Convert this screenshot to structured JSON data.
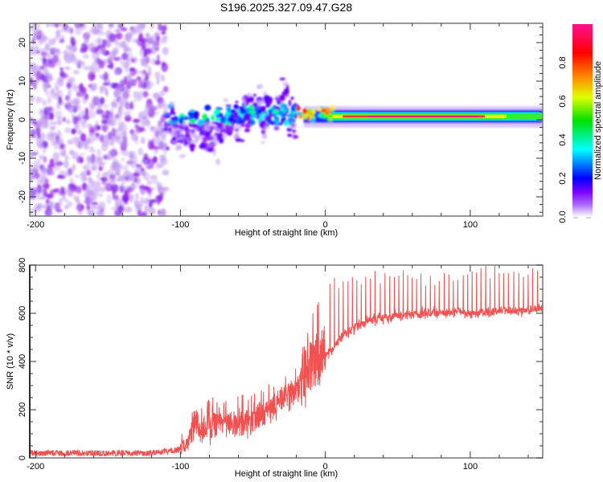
{
  "figure_title": "S196.2025.327.09.47.G28",
  "chart_data": [
    {
      "type": "heatmap",
      "panel": "top",
      "title": "S196.2025.327.09.47.G28",
      "xlabel": "Height of straight line (km)",
      "ylabel": "Frequency (Hz)",
      "xlim": [
        -204,
        150
      ],
      "ylim": [
        -25,
        25
      ],
      "xticks": [
        -200,
        -100,
        0,
        100
      ],
      "xtick_labels": [
        "-200",
        "-100",
        "0",
        "100"
      ],
      "yticks": [
        -20,
        -10,
        0,
        10,
        20
      ],
      "ytick_labels": [
        "-20",
        "-10",
        "0",
        "10",
        "20"
      ],
      "colorbar": {
        "label": "Normalized spectral amplitude",
        "range": [
          0.0,
          1.0
        ],
        "ticks": [
          0.0,
          0.2,
          0.4,
          0.6,
          0.8
        ],
        "tick_labels": [
          "0.0",
          "0.2",
          "0.4",
          "0.6",
          "0.8"
        ],
        "colormap": [
          "#ffffff",
          "#8000ff",
          "#0000ff",
          "#00ffff",
          "#00ff00",
          "#ffff00",
          "#ff8000",
          "#ff0000",
          "#ff0080"
        ]
      },
      "features": [
        {
          "name": "noise-region",
          "x_range": [
            -204,
            -110
          ],
          "freq_range": [
            -25,
            25
          ],
          "amplitude": 0.05
        },
        {
          "name": "turbulent-region",
          "x_range": [
            -110,
            -20
          ],
          "freq_center": 1.5,
          "freq_spread": 6,
          "amplitude": 0.35
        },
        {
          "name": "transition-region",
          "x_range": [
            -20,
            5
          ],
          "freq_center": 1.5,
          "freq_spread": 2,
          "amplitude": 0.75
        },
        {
          "name": "stable-tone",
          "x_range": [
            5,
            110
          ],
          "freq_center": 1.0,
          "freq_spread": 1,
          "amplitude": 0.95
        },
        {
          "name": "tapering-tone",
          "x_range": [
            110,
            150
          ],
          "freq_center": 0.5,
          "freq_spread": 1.5,
          "amplitude": 0.6
        }
      ],
      "grid": false
    },
    {
      "type": "line",
      "panel": "bottom",
      "xlabel": "Height of straight line (km)",
      "ylabel": "SNR (10 * v/v)",
      "xlim": [
        -204,
        150
      ],
      "ylim": [
        0,
        800
      ],
      "xticks": [
        -200,
        -100,
        0,
        100
      ],
      "xtick_labels": [
        "-200",
        "-100",
        "0",
        "100"
      ],
      "yticks": [
        0,
        200,
        400,
        600,
        800
      ],
      "ytick_labels": [
        "0",
        "200",
        "400",
        "600",
        "800"
      ],
      "line_color": "#ee3333",
      "series": [
        {
          "name": "SNR",
          "x": [
            -204,
            -180,
            -160,
            -140,
            -120,
            -105,
            -95,
            -90,
            -85,
            -80,
            -70,
            -60,
            -50,
            -40,
            -30,
            -20,
            -15,
            -10,
            -5,
            0,
            5,
            10,
            20,
            30,
            40,
            50,
            60,
            70,
            80,
            90,
            100,
            110,
            120,
            130,
            140,
            150
          ],
          "baseline": [
            20,
            20,
            20,
            20,
            20,
            30,
            40,
            120,
            100,
            110,
            130,
            120,
            140,
            170,
            230,
            260,
            300,
            330,
            380,
            420,
            450,
            500,
            540,
            570,
            580,
            590,
            595,
            600,
            600,
            605,
            600,
            600,
            610,
            610,
            615,
            620
          ],
          "peak_envelope": [
            40,
            40,
            40,
            40,
            40,
            60,
            160,
            310,
            250,
            300,
            270,
            300,
            320,
            340,
            390,
            440,
            620,
            700,
            730,
            770,
            770,
            760,
            760,
            780,
            780,
            780,
            780,
            770,
            780,
            790,
            790,
            800,
            800,
            800,
            800,
            800
          ]
        }
      ],
      "grid": false
    }
  ]
}
